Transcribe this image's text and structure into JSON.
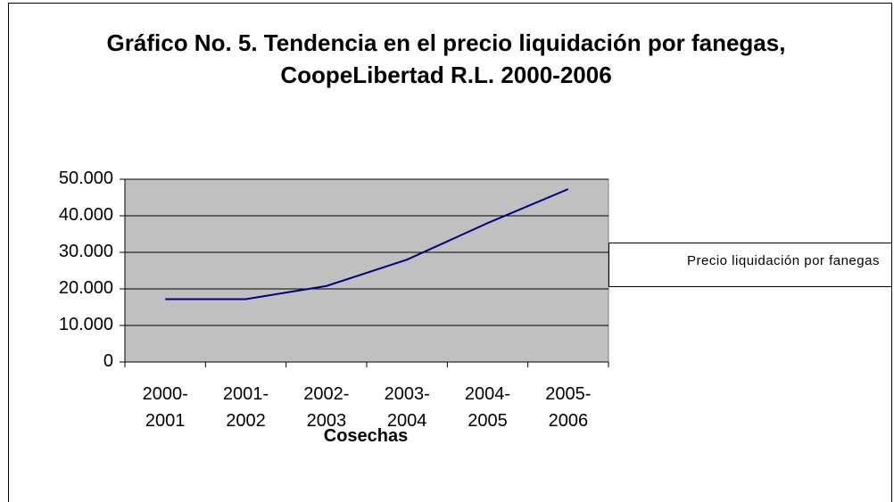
{
  "chart_data": {
    "type": "line",
    "title": "Gráfico No. 5. Tendencia en el precio liquidación por fanegas, CoopeLibertad R.L. 2000-2006",
    "x_label": "Cosechas",
    "categories": [
      "2000-2001",
      "2001-2002",
      "2002-2003",
      "2003-2004",
      "2004-2005",
      "2005-2006"
    ],
    "series": [
      {
        "name": "Precio liquidación por fanegas",
        "color": "#000080",
        "values": [
          17200,
          17200,
          20800,
          28000,
          38000,
          47300
        ]
      }
    ],
    "ylim": [
      0,
      50000
    ],
    "yticks": [
      0,
      {
        "value": 10000,
        "label": "10.000"
      },
      {
        "value": 20000,
        "label": "20.000"
      },
      {
        "value": 30000,
        "label": "30.000"
      },
      {
        "value": 40000,
        "label": "40.000"
      },
      {
        "value": 50000,
        "label": "50.000"
      }
    ],
    "grid": true,
    "plot_background": "#c0c0c0",
    "legend": "right"
  }
}
